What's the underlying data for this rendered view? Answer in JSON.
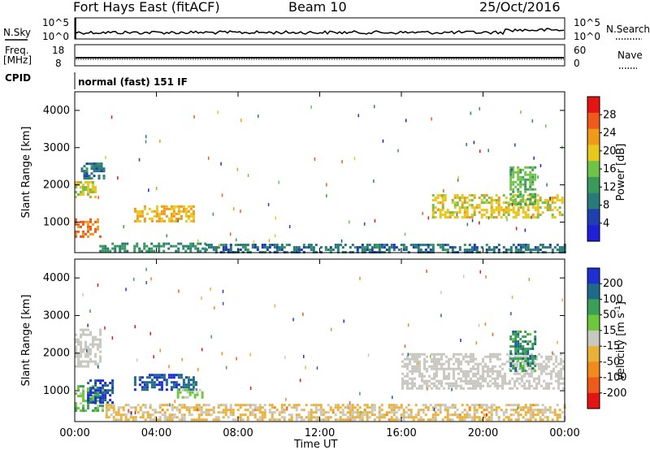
{
  "header": {
    "station": "Fort Hays East (fitACF)",
    "beam": "Beam 10",
    "date": "25/Oct/2016"
  },
  "summary_panels": {
    "nsky_label": "N.Sky",
    "nsearch_label": "N.Search",
    "count_ticks": [
      "10^5",
      "10^0"
    ],
    "freq_label_line1": "Freq.",
    "freq_label_line2": "[MHz]",
    "freq_ticks": [
      "18",
      "8"
    ],
    "nave_label": "Nave",
    "nave_ticks": [
      "60",
      "0"
    ],
    "cpid_label": "CPID",
    "cpid_text": "normal (fast) 151 IF"
  },
  "colors": {
    "power_scale": [
      "#1f1fd6",
      "#1f3fb0",
      "#2a7a7a",
      "#3a9a5a",
      "#6fc24a",
      "#e8c81c",
      "#f09a1a",
      "#ef5a1a",
      "#e41414"
    ],
    "velocity_scale": [
      "#1e2fd0",
      "#1f6a8a",
      "#3aa058",
      "#6cc83a",
      "#c8c8c0",
      "#e8b23a",
      "#f08a1a",
      "#ee5a1a",
      "#e41414"
    ],
    "ground_scatter": "#c8c8c0"
  },
  "chart_data": [
    {
      "type": "heatmap",
      "title": "",
      "ylabel": "Slant Range [km]",
      "xlabel": "Time UT",
      "x_ticks": [
        "00:00",
        "04:00",
        "08:00",
        "12:00",
        "16:00",
        "20:00",
        "00:00"
      ],
      "xlim_hours": [
        0,
        24
      ],
      "y_ticks": [
        "4000",
        "3000",
        "2000",
        "1000"
      ],
      "ylim_km": [
        180,
        4500
      ],
      "colorbar": {
        "label": "Power [dB]",
        "ticks": [
          "28",
          "24",
          "20",
          "16",
          "12",
          "8",
          "4"
        ],
        "range": [
          0,
          30
        ]
      },
      "regions": [
        {
          "t0": 0.0,
          "t1": 1.2,
          "r0": 600,
          "r1": 1100,
          "value": 24
        },
        {
          "t0": 0.0,
          "t1": 1.0,
          "r0": 1700,
          "r1": 2100,
          "value": 18
        },
        {
          "t0": 0.3,
          "t1": 1.4,
          "r0": 2200,
          "r1": 2600,
          "value": 8
        },
        {
          "t0": 2.9,
          "t1": 5.8,
          "r0": 1050,
          "r1": 1450,
          "value": 20
        },
        {
          "t0": 1.2,
          "t1": 6.4,
          "r0": 200,
          "r1": 450,
          "value": 10
        },
        {
          "t0": 6.4,
          "t1": 24.0,
          "r0": 200,
          "r1": 420,
          "value": 8
        },
        {
          "t0": 17.5,
          "t1": 23.9,
          "r0": 1150,
          "r1": 1750,
          "value": 18
        },
        {
          "t0": 21.3,
          "t1": 22.6,
          "r0": 1500,
          "r1": 2500,
          "value": 14
        }
      ]
    },
    {
      "type": "heatmap",
      "title": "",
      "ylabel": "Slant Range [km]",
      "xlabel": "Time UT",
      "x_ticks": [
        "00:00",
        "04:00",
        "08:00",
        "12:00",
        "16:00",
        "20:00",
        "00:00"
      ],
      "xlim_hours": [
        0,
        24
      ],
      "y_ticks": [
        "4000",
        "3000",
        "2000",
        "1000"
      ],
      "ylim_km": [
        180,
        4500
      ],
      "colorbar": {
        "label": "Velocity [m s^-1]",
        "ticks": [
          "200",
          "100",
          "50",
          "15",
          "-15",
          "-50",
          "-100",
          "-200"
        ],
        "range": [
          -250,
          250
        ]
      },
      "regions": [
        {
          "t0": 0.0,
          "t1": 1.4,
          "r0": 500,
          "r1": 1150,
          "value": 60
        },
        {
          "t0": 0.6,
          "t1": 1.8,
          "r0": 700,
          "r1": 1300,
          "value": 200
        },
        {
          "t0": 0.0,
          "t1": 1.3,
          "r0": 1650,
          "r1": 2650,
          "value": 0
        },
        {
          "t0": 2.9,
          "t1": 5.9,
          "r0": 1050,
          "r1": 1450,
          "value": 180
        },
        {
          "t0": 5.0,
          "t1": 6.2,
          "r0": 850,
          "r1": 1050,
          "value": 40
        },
        {
          "t0": 1.5,
          "t1": 24.0,
          "r0": 200,
          "r1": 650,
          "value": -40
        },
        {
          "t0": 16.0,
          "t1": 24.0,
          "r0": 1050,
          "r1": 2000,
          "value": 0
        },
        {
          "t0": 21.3,
          "t1": 22.6,
          "r0": 1500,
          "r1": 2600,
          "value": 120
        }
      ]
    }
  ]
}
